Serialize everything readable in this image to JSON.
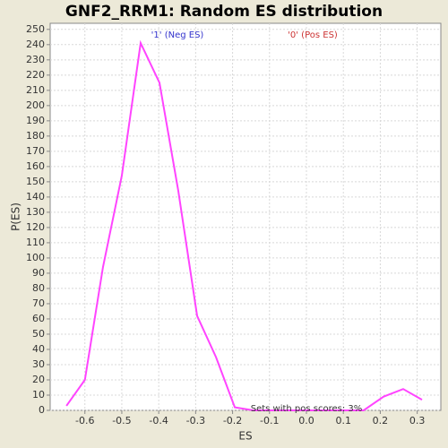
{
  "chart_data": {
    "type": "line",
    "title": "GNF2_RRM1: Random ES distribution",
    "x_label": "ES",
    "y_label": "P(ES)",
    "annotations": [
      "'1' (Neg ES)",
      "'0' (Pos ES)",
      "Sets with pos scores: 3%"
    ],
    "annotation_colors": [
      "#3333cc",
      "#cc3333",
      "#333333"
    ],
    "x": [
      -0.65,
      -0.6,
      -0.551,
      -0.5,
      -0.449,
      -0.398,
      -0.347,
      -0.296,
      -0.245,
      -0.194,
      -0.143,
      -0.092,
      -0.041,
      0.01,
      0.062,
      0.113,
      0.155,
      0.209,
      0.262,
      0.313
    ],
    "series": [
      {
        "name": "P(ES)",
        "color": "#ff44ff",
        "values": [
          3,
          20,
          94,
          154,
          241,
          215,
          144,
          62,
          35,
          2,
          0,
          0,
          0,
          0,
          0,
          0,
          0,
          9,
          14,
          7
        ]
      }
    ],
    "xlim": [
      -0.694,
      0.364
    ],
    "ylim": [
      0,
      254
    ],
    "xticks": [
      -0.6,
      -0.5,
      -0.4,
      -0.3,
      -0.2,
      -0.1,
      {
        "value": 0,
        "label": "0.0"
      },
      0.1,
      0.2,
      0.3
    ],
    "yticks": [
      0,
      10,
      20,
      30,
      40,
      50,
      60,
      70,
      80,
      90,
      100,
      110,
      120,
      130,
      140,
      150,
      160,
      170,
      180,
      190,
      200,
      210,
      220,
      230,
      240,
      250
    ],
    "grid": true
  }
}
